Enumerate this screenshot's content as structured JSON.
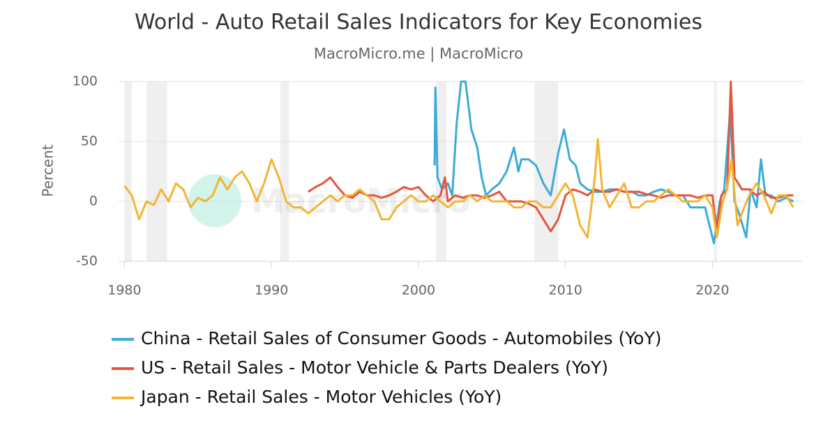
{
  "chart_data": {
    "type": "line",
    "title": "World - Auto Retail Sales Indicators for Key Economies",
    "subtitle": "MacroMicro.me | MacroMicro",
    "watermark": "MacroMicro",
    "y_label": "Percent",
    "xlim": [
      1979.6,
      2026.1
    ],
    "xticks": [
      1980,
      1990,
      2000,
      2010,
      2020
    ],
    "ylim": [
      -50,
      100
    ],
    "yticks": [
      -50,
      0,
      50,
      100
    ],
    "grid": true,
    "recessions": [
      [
        1980.0,
        1980.5
      ],
      [
        1981.5,
        1982.9
      ],
      [
        1990.6,
        1991.2
      ],
      [
        2001.2,
        2001.9
      ],
      [
        2007.9,
        2009.5
      ],
      [
        2020.1,
        2020.3
      ]
    ],
    "series": [
      {
        "name": "China - Retail Sales of Consumer Goods - Automobiles (YoY)",
        "color": "#3caad9",
        "x": [
          2001.1,
          2001.15,
          2001.3,
          2001.6,
          2002,
          2002.3,
          2002.6,
          2002.9,
          2003.2,
          2003.4,
          2003.6,
          2004,
          2004.3,
          2004.6,
          2005,
          2005.5,
          2006,
          2006.5,
          2006.8,
          2007,
          2007.5,
          2008,
          2008.5,
          2009,
          2009.5,
          2009.9,
          2010.3,
          2010.7,
          2011,
          2011.5,
          2012,
          2012.5,
          2013,
          2013.5,
          2014,
          2014.5,
          2015,
          2015.5,
          2016,
          2016.5,
          2017,
          2017.5,
          2018,
          2018.5,
          2019,
          2019.5,
          2020.1,
          2020.5,
          2020.8,
          2021.2,
          2021.5,
          2021.8,
          2022.3,
          2022.6,
          2023,
          2023.3,
          2023.6,
          2024,
          2024.5,
          2025,
          2025.5
        ],
        "values": [
          30,
          95,
          20,
          10,
          15,
          5,
          65,
          100,
          100,
          80,
          60,
          45,
          20,
          5,
          10,
          15,
          25,
          45,
          25,
          35,
          35,
          30,
          15,
          5,
          40,
          60,
          35,
          30,
          15,
          10,
          8,
          8,
          10,
          10,
          8,
          8,
          5,
          5,
          8,
          10,
          8,
          5,
          5,
          -5,
          -5,
          -5,
          -35,
          0,
          10,
          75,
          0,
          -10,
          -30,
          10,
          -5,
          35,
          5,
          5,
          0,
          3,
          0
        ]
      },
      {
        "name": "US - Retail Sales - Motor Vehicle & Parts Dealers (YoY)",
        "color": "#e5553a",
        "x": [
          1992.5,
          1993,
          1993.5,
          1994,
          1994.5,
          1995,
          1995.5,
          1996,
          1996.5,
          1997,
          1997.5,
          1998,
          1998.5,
          1999,
          1999.5,
          2000,
          2000.5,
          2001,
          2001.5,
          2001.8,
          2002,
          2002.5,
          2003,
          2003.5,
          2004,
          2004.5,
          2005,
          2005.5,
          2006,
          2006.5,
          2007,
          2007.5,
          2008,
          2008.5,
          2009,
          2009.5,
          2010,
          2010.5,
          2011,
          2011.5,
          2012,
          2012.5,
          2013,
          2013.5,
          2014,
          2014.5,
          2015,
          2015.5,
          2016,
          2016.5,
          2017,
          2017.5,
          2018,
          2018.5,
          2019,
          2019.5,
          2020,
          2020.3,
          2020.6,
          2021,
          2021.25,
          2021.5,
          2022,
          2022.5,
          2023,
          2023.5,
          2024,
          2024.5,
          2025,
          2025.5
        ],
        "values": [
          8,
          12,
          15,
          20,
          12,
          5,
          3,
          8,
          5,
          5,
          3,
          5,
          8,
          12,
          10,
          12,
          5,
          0,
          5,
          20,
          0,
          5,
          3,
          5,
          5,
          3,
          5,
          8,
          0,
          0,
          0,
          -2,
          -5,
          -15,
          -25,
          -15,
          5,
          10,
          8,
          5,
          10,
          8,
          8,
          10,
          8,
          8,
          8,
          6,
          5,
          3,
          5,
          5,
          5,
          5,
          3,
          5,
          5,
          -25,
          5,
          10,
          100,
          20,
          10,
          10,
          5,
          8,
          3,
          3,
          5,
          5
        ]
      },
      {
        "name": "Japan - Retail Sales - Motor Vehicles (YoY)",
        "color": "#f2b534",
        "x": [
          1980,
          1980.5,
          1981,
          1981.5,
          1982,
          1982.5,
          1983,
          1983.5,
          1984,
          1984.5,
          1985,
          1985.5,
          1986,
          1986.5,
          1987,
          1987.5,
          1988,
          1988.5,
          1989,
          1989.5,
          1990,
          1990.5,
          1991,
          1991.5,
          1992,
          1992.5,
          1993,
          1993.5,
          1994,
          1994.5,
          1995,
          1995.5,
          1996,
          1996.5,
          1997,
          1997.5,
          1998,
          1998.5,
          1999,
          1999.5,
          2000,
          2000.5,
          2001,
          2001.5,
          2002,
          2002.5,
          2003,
          2003.5,
          2004,
          2004.5,
          2005,
          2005.5,
          2006,
          2006.5,
          2007,
          2007.5,
          2008,
          2008.5,
          2009,
          2009.5,
          2010,
          2010.5,
          2011,
          2011.5,
          2012,
          2012.2,
          2012.5,
          2013,
          2013.5,
          2014,
          2014.5,
          2015,
          2015.5,
          2016,
          2016.5,
          2017,
          2017.5,
          2018,
          2018.5,
          2019,
          2019.5,
          2020,
          2020.3,
          2020.7,
          2021,
          2021.3,
          2021.7,
          2022,
          2022.5,
          2023,
          2023.5,
          2024,
          2024.5,
          2025,
          2025.5
        ],
        "values": [
          13,
          5,
          -15,
          0,
          -3,
          10,
          0,
          15,
          10,
          -5,
          3,
          0,
          5,
          20,
          10,
          20,
          25,
          15,
          0,
          15,
          35,
          20,
          0,
          -5,
          -5,
          -10,
          -5,
          0,
          5,
          0,
          5,
          5,
          10,
          5,
          0,
          -15,
          -15,
          -5,
          0,
          5,
          0,
          0,
          5,
          0,
          -5,
          0,
          0,
          5,
          0,
          5,
          0,
          0,
          0,
          -5,
          -5,
          0,
          0,
          -5,
          -5,
          5,
          15,
          5,
          -20,
          -30,
          20,
          52,
          10,
          -5,
          5,
          15,
          -5,
          -5,
          0,
          0,
          5,
          10,
          5,
          0,
          0,
          0,
          5,
          -5,
          -30,
          0,
          10,
          35,
          -20,
          -10,
          5,
          15,
          5,
          -10,
          5,
          5,
          -5
        ]
      }
    ]
  }
}
